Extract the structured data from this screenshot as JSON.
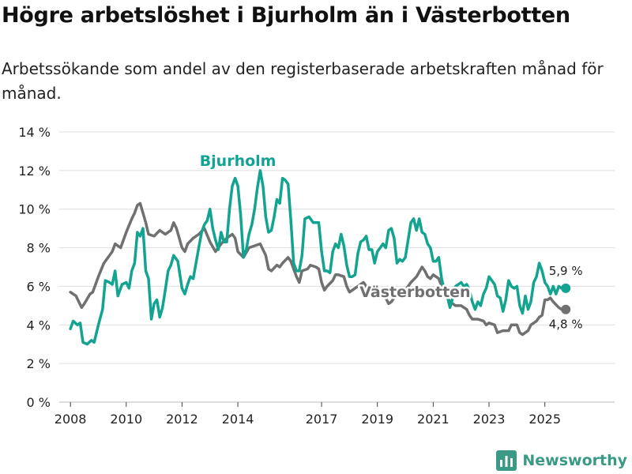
{
  "title": "Högre arbetslöshet i Bjurholm än i Västerbotten",
  "subtitle": "Arbetssökande som andel av den registerbaserade arbetskraften månad för månad.",
  "brand": "Newsworthy",
  "colors": {
    "bjurholm": "#12a391",
    "vasterbotten": "#707070",
    "grid": "#dddddd",
    "text": "#222222"
  },
  "chart_data": {
    "type": "line",
    "ylim": [
      0,
      14
    ],
    "yticks": [
      0,
      2,
      4,
      6,
      8,
      10,
      12,
      14
    ],
    "yticklabels": [
      "0 %",
      "2 %",
      "4 %",
      "6 %",
      "8 %",
      "10 %",
      "12 %",
      "14 %"
    ],
    "xlim": [
      2007.6,
      2027.5
    ],
    "xticks": [
      2008,
      2010,
      2012,
      2014,
      2017,
      2019,
      2021,
      2023,
      2025
    ],
    "xticklabels": [
      "2008",
      "2010",
      "2012",
      "2014",
      "2017",
      "2019",
      "2021",
      "2023",
      "2025"
    ],
    "series": [
      {
        "name": "Bjurholm",
        "label": "Bjurholm",
        "end_label": "5,9 %",
        "points": [
          [
            2008.0,
            3.8
          ],
          [
            2008.1,
            4.2
          ],
          [
            2008.25,
            4.0
          ],
          [
            2008.35,
            4.1
          ],
          [
            2008.45,
            3.1
          ],
          [
            2008.6,
            3.0
          ],
          [
            2008.75,
            3.2
          ],
          [
            2008.85,
            3.1
          ],
          [
            2009.0,
            4.0
          ],
          [
            2009.15,
            4.8
          ],
          [
            2009.25,
            6.3
          ],
          [
            2009.4,
            6.2
          ],
          [
            2009.5,
            6.1
          ],
          [
            2009.6,
            6.8
          ],
          [
            2009.7,
            5.5
          ],
          [
            2009.85,
            6.1
          ],
          [
            2010.0,
            6.2
          ],
          [
            2010.1,
            5.9
          ],
          [
            2010.2,
            6.8
          ],
          [
            2010.3,
            7.2
          ],
          [
            2010.4,
            8.8
          ],
          [
            2010.5,
            8.6
          ],
          [
            2010.6,
            9.0
          ],
          [
            2010.7,
            6.8
          ],
          [
            2010.8,
            6.4
          ],
          [
            2010.9,
            4.3
          ],
          [
            2011.0,
            5.1
          ],
          [
            2011.1,
            5.3
          ],
          [
            2011.2,
            4.4
          ],
          [
            2011.3,
            4.9
          ],
          [
            2011.4,
            5.8
          ],
          [
            2011.5,
            6.8
          ],
          [
            2011.6,
            7.1
          ],
          [
            2011.7,
            7.6
          ],
          [
            2011.85,
            7.3
          ],
          [
            2012.0,
            5.9
          ],
          [
            2012.1,
            5.6
          ],
          [
            2012.2,
            6.1
          ],
          [
            2012.3,
            6.5
          ],
          [
            2012.4,
            6.4
          ],
          [
            2012.5,
            7.2
          ],
          [
            2012.6,
            8.0
          ],
          [
            2012.7,
            8.8
          ],
          [
            2012.8,
            9.2
          ],
          [
            2012.9,
            9.4
          ],
          [
            2013.0,
            10.0
          ],
          [
            2013.1,
            9.0
          ],
          [
            2013.2,
            8.4
          ],
          [
            2013.3,
            7.9
          ],
          [
            2013.4,
            8.8
          ],
          [
            2013.5,
            8.3
          ],
          [
            2013.6,
            8.3
          ],
          [
            2013.7,
            10.0
          ],
          [
            2013.8,
            11.2
          ],
          [
            2013.9,
            11.6
          ],
          [
            2014.0,
            11.2
          ],
          [
            2014.1,
            9.7
          ],
          [
            2014.2,
            7.5
          ],
          [
            2014.3,
            7.9
          ],
          [
            2014.4,
            8.7
          ],
          [
            2014.5,
            9.2
          ],
          [
            2014.6,
            10.0
          ],
          [
            2014.7,
            11.1
          ],
          [
            2014.8,
            12.0
          ],
          [
            2014.9,
            11.2
          ],
          [
            2015.0,
            9.6
          ],
          [
            2015.1,
            8.8
          ],
          [
            2015.2,
            8.9
          ],
          [
            2015.3,
            9.6
          ],
          [
            2015.4,
            10.5
          ],
          [
            2015.5,
            10.3
          ],
          [
            2015.6,
            11.6
          ],
          [
            2015.7,
            11.5
          ],
          [
            2015.8,
            11.3
          ],
          [
            2015.9,
            9.4
          ],
          [
            2016.0,
            7.2
          ],
          [
            2016.1,
            6.8
          ],
          [
            2016.2,
            6.8
          ],
          [
            2016.3,
            7.6
          ],
          [
            2016.4,
            9.5
          ],
          [
            2016.55,
            9.6
          ],
          [
            2016.7,
            9.3
          ],
          [
            2016.9,
            9.3
          ],
          [
            2017.0,
            7.8
          ],
          [
            2017.1,
            6.8
          ],
          [
            2017.2,
            6.8
          ],
          [
            2017.3,
            6.7
          ],
          [
            2017.4,
            7.8
          ],
          [
            2017.5,
            8.2
          ],
          [
            2017.6,
            8.0
          ],
          [
            2017.7,
            8.7
          ],
          [
            2017.8,
            8.1
          ],
          [
            2017.9,
            7.1
          ],
          [
            2018.0,
            6.5
          ],
          [
            2018.1,
            6.5
          ],
          [
            2018.2,
            6.6
          ],
          [
            2018.3,
            7.7
          ],
          [
            2018.4,
            8.3
          ],
          [
            2018.5,
            8.4
          ],
          [
            2018.6,
            8.6
          ],
          [
            2018.7,
            7.9
          ],
          [
            2018.8,
            7.9
          ],
          [
            2018.9,
            7.2
          ],
          [
            2019.0,
            7.8
          ],
          [
            2019.1,
            8.0
          ],
          [
            2019.2,
            8.2
          ],
          [
            2019.3,
            8.0
          ],
          [
            2019.4,
            8.9
          ],
          [
            2019.5,
            9.0
          ],
          [
            2019.6,
            8.5
          ],
          [
            2019.7,
            7.2
          ],
          [
            2019.8,
            7.4
          ],
          [
            2019.9,
            7.3
          ],
          [
            2020.0,
            7.5
          ],
          [
            2020.1,
            8.4
          ],
          [
            2020.2,
            9.3
          ],
          [
            2020.3,
            9.5
          ],
          [
            2020.4,
            8.9
          ],
          [
            2020.5,
            9.5
          ],
          [
            2020.6,
            8.8
          ],
          [
            2020.7,
            8.7
          ],
          [
            2020.8,
            8.2
          ],
          [
            2020.9,
            8.0
          ],
          [
            2021.0,
            7.3
          ],
          [
            2021.1,
            7.3
          ],
          [
            2021.2,
            7.5
          ],
          [
            2021.3,
            6.4
          ],
          [
            2021.4,
            5.8
          ],
          [
            2021.5,
            5.5
          ],
          [
            2021.6,
            4.9
          ],
          [
            2021.7,
            5.4
          ],
          [
            2021.8,
            6.0
          ],
          [
            2021.9,
            6.1
          ],
          [
            2022.0,
            6.2
          ],
          [
            2022.1,
            6.0
          ],
          [
            2022.2,
            6.1
          ],
          [
            2022.3,
            5.8
          ],
          [
            2022.4,
            5.2
          ],
          [
            2022.5,
            4.8
          ],
          [
            2022.6,
            5.2
          ],
          [
            2022.7,
            5.0
          ],
          [
            2022.8,
            5.6
          ],
          [
            2022.9,
            5.9
          ],
          [
            2023.0,
            6.5
          ],
          [
            2023.1,
            6.3
          ],
          [
            2023.2,
            6.1
          ],
          [
            2023.3,
            5.5
          ],
          [
            2023.4,
            5.4
          ],
          [
            2023.5,
            4.7
          ],
          [
            2023.6,
            5.3
          ],
          [
            2023.7,
            6.3
          ],
          [
            2023.8,
            6.0
          ],
          [
            2023.9,
            5.9
          ],
          [
            2024.0,
            6.0
          ],
          [
            2024.1,
            5.0
          ],
          [
            2024.2,
            4.6
          ],
          [
            2024.3,
            5.5
          ],
          [
            2024.4,
            4.8
          ],
          [
            2024.5,
            5.2
          ],
          [
            2024.6,
            6.2
          ],
          [
            2024.7,
            6.5
          ],
          [
            2024.8,
            7.2
          ],
          [
            2024.9,
            6.8
          ],
          [
            2025.0,
            6.2
          ],
          [
            2025.1,
            6.0
          ],
          [
            2025.2,
            5.6
          ],
          [
            2025.3,
            6.0
          ],
          [
            2025.4,
            5.6
          ],
          [
            2025.5,
            6.0
          ],
          [
            2025.6,
            5.9
          ],
          [
            2025.7,
            5.9
          ],
          [
            2025.75,
            5.9
          ]
        ]
      },
      {
        "name": "Västerbotten",
        "label": "Västerbotten",
        "end_label": "4,8 %",
        "points": [
          [
            2008.0,
            5.7
          ],
          [
            2008.2,
            5.5
          ],
          [
            2008.4,
            4.9
          ],
          [
            2008.5,
            5.1
          ],
          [
            2008.7,
            5.6
          ],
          [
            2008.8,
            5.7
          ],
          [
            2009.0,
            6.5
          ],
          [
            2009.2,
            7.2
          ],
          [
            2009.5,
            7.8
          ],
          [
            2009.6,
            8.2
          ],
          [
            2009.8,
            8.0
          ],
          [
            2010.0,
            8.8
          ],
          [
            2010.2,
            9.5
          ],
          [
            2010.3,
            9.8
          ],
          [
            2010.4,
            10.2
          ],
          [
            2010.5,
            10.3
          ],
          [
            2010.6,
            9.8
          ],
          [
            2010.7,
            9.3
          ],
          [
            2010.8,
            8.7
          ],
          [
            2011.0,
            8.6
          ],
          [
            2011.2,
            8.9
          ],
          [
            2011.4,
            8.7
          ],
          [
            2011.6,
            8.9
          ],
          [
            2011.7,
            9.3
          ],
          [
            2011.8,
            9.0
          ],
          [
            2012.0,
            8.0
          ],
          [
            2012.1,
            7.8
          ],
          [
            2012.2,
            8.2
          ],
          [
            2012.4,
            8.5
          ],
          [
            2012.6,
            8.7
          ],
          [
            2012.8,
            9.0
          ],
          [
            2013.0,
            8.3
          ],
          [
            2013.2,
            7.8
          ],
          [
            2013.4,
            8.2
          ],
          [
            2013.6,
            8.5
          ],
          [
            2013.8,
            8.7
          ],
          [
            2013.9,
            8.5
          ],
          [
            2014.0,
            7.8
          ],
          [
            2014.2,
            7.5
          ],
          [
            2014.4,
            8.0
          ],
          [
            2014.6,
            8.1
          ],
          [
            2014.8,
            8.2
          ],
          [
            2015.0,
            7.6
          ],
          [
            2015.1,
            6.9
          ],
          [
            2015.2,
            6.8
          ],
          [
            2015.4,
            7.1
          ],
          [
            2015.5,
            7.0
          ],
          [
            2015.6,
            7.2
          ],
          [
            2015.8,
            7.5
          ],
          [
            2015.9,
            7.3
          ],
          [
            2016.0,
            6.9
          ],
          [
            2016.1,
            6.5
          ],
          [
            2016.2,
            6.2
          ],
          [
            2016.3,
            6.8
          ],
          [
            2016.5,
            6.9
          ],
          [
            2016.6,
            7.1
          ],
          [
            2016.8,
            7.0
          ],
          [
            2016.9,
            6.9
          ],
          [
            2017.0,
            6.2
          ],
          [
            2017.1,
            5.8
          ],
          [
            2017.2,
            6.0
          ],
          [
            2017.4,
            6.3
          ],
          [
            2017.5,
            6.6
          ],
          [
            2017.6,
            6.6
          ],
          [
            2017.8,
            6.5
          ],
          [
            2017.9,
            6.0
          ],
          [
            2018.0,
            5.7
          ],
          [
            2018.1,
            5.8
          ],
          [
            2018.3,
            6.0
          ],
          [
            2018.5,
            6.2
          ],
          [
            2018.7,
            5.8
          ],
          [
            2018.9,
            5.6
          ],
          [
            2019.0,
            5.5
          ],
          [
            2019.2,
            5.8
          ],
          [
            2019.3,
            5.4
          ],
          [
            2019.4,
            5.1
          ],
          [
            2019.5,
            5.2
          ],
          [
            2019.7,
            5.6
          ],
          [
            2019.9,
            5.7
          ],
          [
            2020.0,
            5.8
          ],
          [
            2020.2,
            6.2
          ],
          [
            2020.4,
            6.5
          ],
          [
            2020.6,
            7.0
          ],
          [
            2020.7,
            6.8
          ],
          [
            2020.8,
            6.5
          ],
          [
            2020.9,
            6.4
          ],
          [
            2021.0,
            6.6
          ],
          [
            2021.2,
            6.4
          ],
          [
            2021.3,
            6.0
          ],
          [
            2021.5,
            5.5
          ],
          [
            2021.6,
            5.2
          ],
          [
            2021.8,
            5.0
          ],
          [
            2022.0,
            5.0
          ],
          [
            2022.2,
            4.8
          ],
          [
            2022.3,
            4.5
          ],
          [
            2022.4,
            4.3
          ],
          [
            2022.6,
            4.3
          ],
          [
            2022.8,
            4.2
          ],
          [
            2022.9,
            4.0
          ],
          [
            2023.0,
            4.1
          ],
          [
            2023.2,
            4.0
          ],
          [
            2023.3,
            3.6
          ],
          [
            2023.5,
            3.7
          ],
          [
            2023.7,
            3.7
          ],
          [
            2023.8,
            4.0
          ],
          [
            2024.0,
            4.0
          ],
          [
            2024.1,
            3.6
          ],
          [
            2024.2,
            3.5
          ],
          [
            2024.4,
            3.7
          ],
          [
            2024.5,
            4.0
          ],
          [
            2024.7,
            4.2
          ],
          [
            2024.8,
            4.4
          ],
          [
            2024.9,
            4.5
          ],
          [
            2025.0,
            5.3
          ],
          [
            2025.1,
            5.3
          ],
          [
            2025.2,
            5.4
          ],
          [
            2025.3,
            5.2
          ],
          [
            2025.5,
            4.9
          ],
          [
            2025.6,
            4.8
          ],
          [
            2025.75,
            4.8
          ]
        ]
      }
    ]
  }
}
